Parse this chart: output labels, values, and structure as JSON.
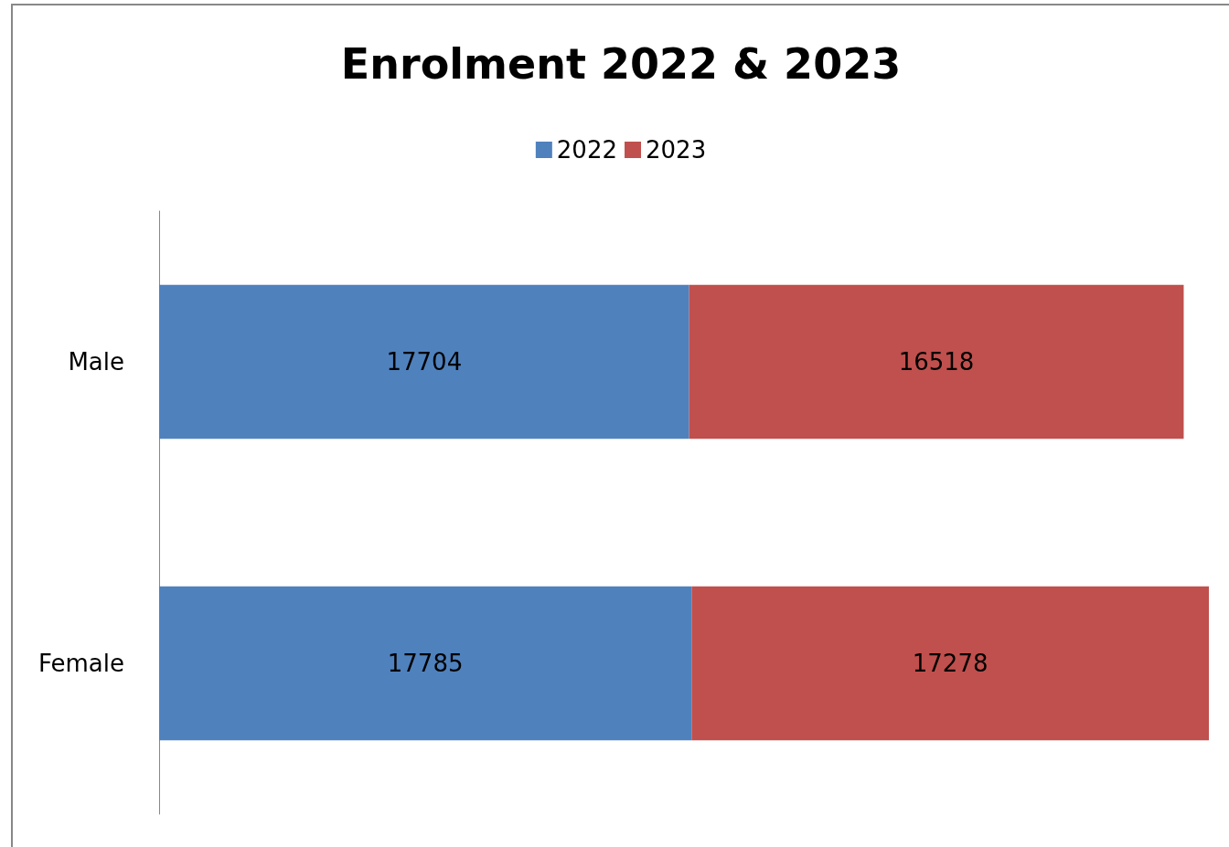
{
  "chart_data": {
    "type": "bar",
    "title": "Enrolment 2022 & 2023",
    "orientation": "horizontal",
    "stacked": true,
    "categories": [
      "Male",
      "Female"
    ],
    "series": [
      {
        "name": "2022",
        "color": "#4f81bd",
        "values": [
          17704,
          17785
        ]
      },
      {
        "name": "2023",
        "color": "#c0504d",
        "values": [
          16518,
          17278
        ]
      }
    ],
    "data_labels": true,
    "legend": "top"
  }
}
